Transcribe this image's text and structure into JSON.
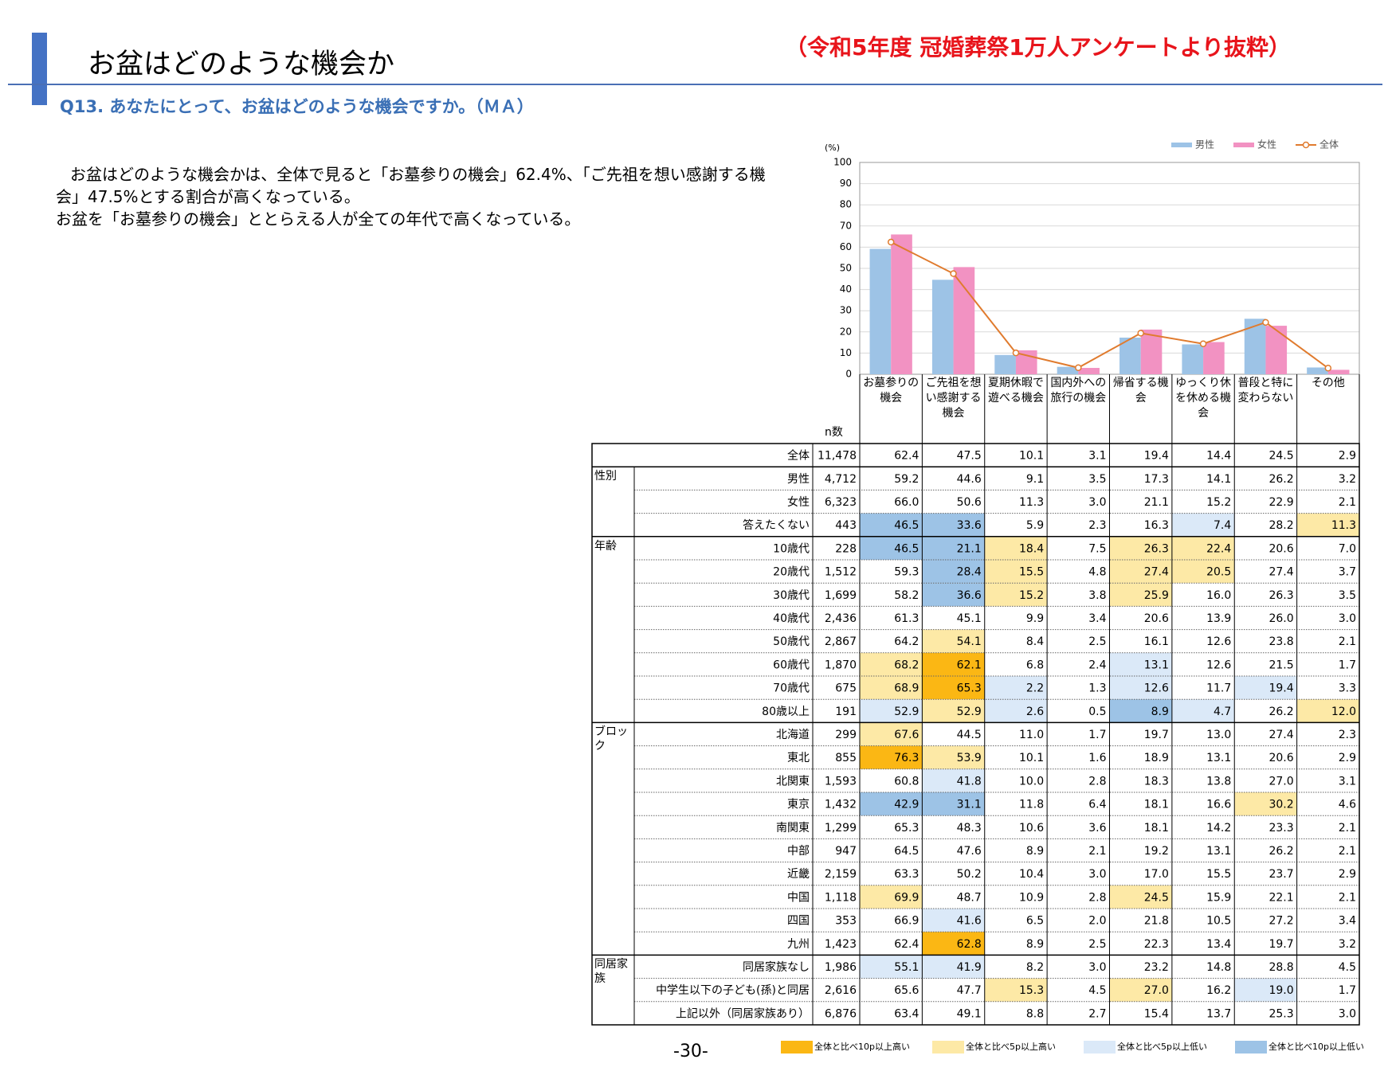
{
  "header": {
    "title": "お盆はどのような機会か",
    "source": "（令和5年度 冠婚葬祭1万人アンケートより抜粋）",
    "question": "Q13. あなたにとって、お盆はどのような機会ですか。（ＭＡ）"
  },
  "body": [
    "お盆はどのような機会かは、全体で見ると「お墓参りの機会」62.4%、「ご先祖を想い感謝する機会」47.5%とする割合が高くなっている。",
    "お盆を「お墓参りの機会」ととらえる人が全ての年代で高くなっている。"
  ],
  "chart_data": {
    "type": "bar",
    "y_label": "(%)",
    "categories": [
      "お墓参りの機会",
      "ご先祖を想い感謝する機会",
      "夏期休暇で遊べる機会",
      "国内外への旅行の機会",
      "帰省する機会",
      "ゆっくり休を休める機会",
      "普段と特に変わらない",
      "その他"
    ],
    "series": [
      {
        "name": "男性",
        "color": "#9dc3e6",
        "values": [
          59.2,
          44.6,
          9.1,
          3.5,
          17.3,
          14.1,
          26.2,
          3.2
        ]
      },
      {
        "name": "女性",
        "color": "#f292c2",
        "values": [
          66.0,
          50.6,
          11.3,
          3.0,
          21.1,
          15.2,
          22.9,
          2.1
        ]
      },
      {
        "name": "全体",
        "type": "line",
        "color": "#e07b2e",
        "values": [
          62.4,
          47.5,
          10.1,
          3.1,
          19.4,
          14.4,
          24.5,
          2.9
        ]
      }
    ],
    "ylim": [
      0,
      100
    ],
    "yticks": [
      0,
      10,
      20,
      30,
      40,
      50,
      60,
      70,
      80,
      90,
      100
    ],
    "grid": true,
    "legend": "top-right"
  },
  "table": {
    "n_label": "n数",
    "total": {
      "label": "全体",
      "n": "11,478",
      "cells": [
        "62.4",
        "47.5",
        "10.1",
        "3.1",
        "19.4",
        "14.4",
        "24.5",
        "2.9"
      ]
    },
    "groups": [
      {
        "name": "性別",
        "rows": [
          {
            "label": "男性",
            "n": "4,712",
            "cells": [
              "59.2",
              "44.6",
              "9.1",
              "3.5",
              "17.3",
              "14.1",
              "26.2",
              "3.2"
            ]
          },
          {
            "label": "女性",
            "n": "6,323",
            "cells": [
              "66.0",
              "50.6",
              "11.3",
              "3.0",
              "21.1",
              "15.2",
              "22.9",
              "2.1"
            ]
          },
          {
            "label": "答えたくない",
            "n": "443",
            "cells": [
              "46.5",
              "33.6",
              "5.9",
              "2.3",
              "16.3",
              "7.4",
              "28.2",
              "11.3"
            ]
          }
        ]
      },
      {
        "name": "年齢",
        "rows": [
          {
            "label": "10歳代",
            "n": "228",
            "cells": [
              "46.5",
              "21.1",
              "18.4",
              "7.5",
              "26.3",
              "22.4",
              "20.6",
              "7.0"
            ]
          },
          {
            "label": "20歳代",
            "n": "1,512",
            "cells": [
              "59.3",
              "28.4",
              "15.5",
              "4.8",
              "27.4",
              "20.5",
              "27.4",
              "3.7"
            ]
          },
          {
            "label": "30歳代",
            "n": "1,699",
            "cells": [
              "58.2",
              "36.6",
              "15.2",
              "3.8",
              "25.9",
              "16.0",
              "26.3",
              "3.5"
            ]
          },
          {
            "label": "40歳代",
            "n": "2,436",
            "cells": [
              "61.3",
              "45.1",
              "9.9",
              "3.4",
              "20.6",
              "13.9",
              "26.0",
              "3.0"
            ]
          },
          {
            "label": "50歳代",
            "n": "2,867",
            "cells": [
              "64.2",
              "54.1",
              "8.4",
              "2.5",
              "16.1",
              "12.6",
              "23.8",
              "2.1"
            ]
          },
          {
            "label": "60歳代",
            "n": "1,870",
            "cells": [
              "68.2",
              "62.1",
              "6.8",
              "2.4",
              "13.1",
              "12.6",
              "21.5",
              "1.7"
            ]
          },
          {
            "label": "70歳代",
            "n": "675",
            "cells": [
              "68.9",
              "65.3",
              "2.2",
              "1.3",
              "12.6",
              "11.7",
              "19.4",
              "3.3"
            ]
          },
          {
            "label": "80歳以上",
            "n": "191",
            "cells": [
              "52.9",
              "52.9",
              "2.6",
              "0.5",
              "8.9",
              "4.7",
              "26.2",
              "12.0"
            ]
          }
        ]
      },
      {
        "name": "ブロック",
        "rows": [
          {
            "label": "北海道",
            "n": "299",
            "cells": [
              "67.6",
              "44.5",
              "11.0",
              "1.7",
              "19.7",
              "13.0",
              "27.4",
              "2.3"
            ]
          },
          {
            "label": "東北",
            "n": "855",
            "cells": [
              "76.3",
              "53.9",
              "10.1",
              "1.6",
              "18.9",
              "13.1",
              "20.6",
              "2.9"
            ]
          },
          {
            "label": "北関東",
            "n": "1,593",
            "cells": [
              "60.8",
              "41.8",
              "10.0",
              "2.8",
              "18.3",
              "13.8",
              "27.0",
              "3.1"
            ]
          },
          {
            "label": "東京",
            "n": "1,432",
            "cells": [
              "42.9",
              "31.1",
              "11.8",
              "6.4",
              "18.1",
              "16.6",
              "30.2",
              "4.6"
            ]
          },
          {
            "label": "南関東",
            "n": "1,299",
            "cells": [
              "65.3",
              "48.3",
              "10.6",
              "3.6",
              "18.1",
              "14.2",
              "23.3",
              "2.1"
            ]
          },
          {
            "label": "中部",
            "n": "947",
            "cells": [
              "64.5",
              "47.6",
              "8.9",
              "2.1",
              "19.2",
              "13.1",
              "26.2",
              "2.1"
            ]
          },
          {
            "label": "近畿",
            "n": "2,159",
            "cells": [
              "63.3",
              "50.2",
              "10.4",
              "3.0",
              "17.0",
              "15.5",
              "23.7",
              "2.9"
            ]
          },
          {
            "label": "中国",
            "n": "1,118",
            "cells": [
              "69.9",
              "48.7",
              "10.9",
              "2.8",
              "24.5",
              "15.9",
              "22.1",
              "2.1"
            ]
          },
          {
            "label": "四国",
            "n": "353",
            "cells": [
              "66.9",
              "41.6",
              "6.5",
              "2.0",
              "21.8",
              "10.5",
              "27.2",
              "3.4"
            ]
          },
          {
            "label": "九州",
            "n": "1,423",
            "cells": [
              "62.4",
              "62.8",
              "8.9",
              "2.5",
              "22.3",
              "13.4",
              "19.7",
              "3.2"
            ]
          }
        ]
      },
      {
        "name": "同居家族",
        "rows": [
          {
            "label": "同居家族なし",
            "n": "1,986",
            "cells": [
              "55.1",
              "41.9",
              "8.2",
              "3.0",
              "23.2",
              "14.8",
              "28.8",
              "4.5"
            ]
          },
          {
            "label": "中学生以下の子ども(孫)と同居",
            "n": "2,616",
            "cells": [
              "65.6",
              "47.7",
              "15.3",
              "4.5",
              "27.0",
              "16.2",
              "19.0",
              "1.7"
            ]
          },
          {
            "label": "上記以外（同居家族あり）",
            "n": "6,876",
            "cells": [
              "63.4",
              "49.1",
              "8.8",
              "2.7",
              "15.4",
              "13.7",
              "25.3",
              "3.0"
            ]
          }
        ]
      }
    ],
    "legend": [
      {
        "label": "全体と比べ10p以上高い",
        "color": "#fbb714",
        "threshold": 10
      },
      {
        "label": "全体と比べ5p以上高い",
        "color": "#fde9a6",
        "threshold": 5
      },
      {
        "label": "全体と比べ5p以上低い",
        "color": "#dbe9f8",
        "threshold": -5
      },
      {
        "label": "全体と比べ10p以上低い",
        "color": "#9dc3e6",
        "threshold": -10
      }
    ]
  },
  "page_number": "-30-"
}
